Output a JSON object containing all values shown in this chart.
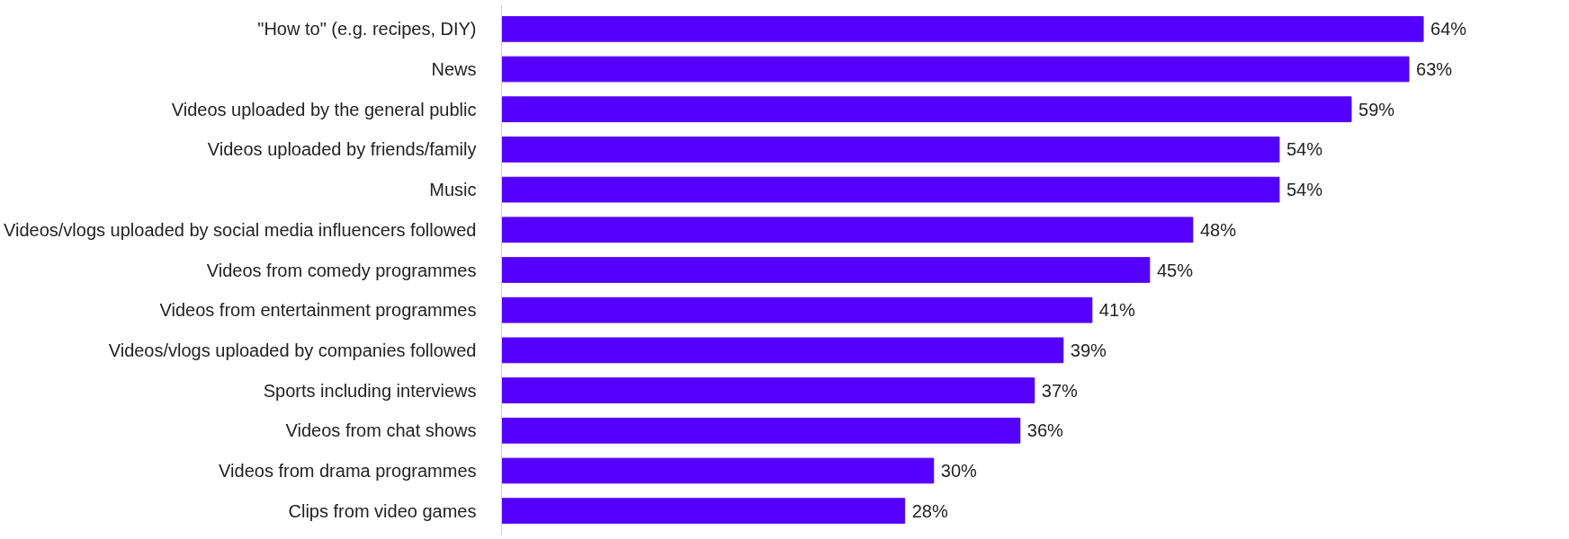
{
  "chart_data": {
    "type": "bar",
    "orientation": "horizontal",
    "categories": [
      "\"How to\" (e.g. recipes, DIY)",
      "News",
      "Videos uploaded by the general public",
      "Videos uploaded by friends/family",
      "Music",
      "Videos/vlogs uploaded by social media influencers followed",
      "Videos from comedy programmes",
      "Videos from entertainment programmes",
      "Videos/vlogs uploaded by companies followed",
      "Sports including interviews",
      "Videos from chat shows",
      "Videos from drama programmes",
      "Clips from video games"
    ],
    "values": [
      64,
      63,
      59,
      54,
      54,
      48,
      45,
      41,
      39,
      37,
      36,
      30,
      28
    ],
    "value_labels": [
      "64%",
      "63%",
      "59%",
      "54%",
      "54%",
      "48%",
      "45%",
      "41%",
      "39%",
      "37%",
      "36%",
      "30%",
      "28%"
    ],
    "color": "#5500ff"
  }
}
